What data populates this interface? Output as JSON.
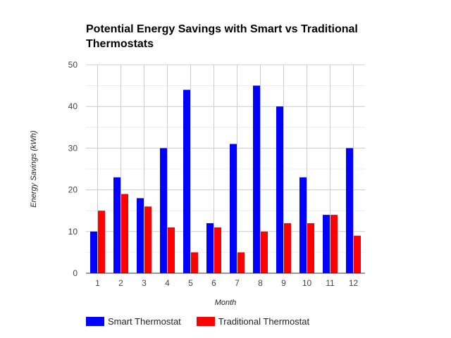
{
  "chart_data": {
    "type": "bar",
    "title": "Potential Energy Savings with Smart vs Traditional Thermostats",
    "xlabel": "Month",
    "ylabel": "Energy Savings (kWh)",
    "categories": [
      "1",
      "2",
      "3",
      "4",
      "5",
      "6",
      "7",
      "8",
      "9",
      "10",
      "11",
      "12"
    ],
    "ylim": [
      0,
      50
    ],
    "yticks": [
      0,
      10,
      20,
      30,
      40,
      50
    ],
    "grid": true,
    "legend_position": "bottom",
    "series": [
      {
        "name": "Smart Thermostat",
        "color": "#0000ff",
        "values": [
          10,
          23,
          18,
          30,
          44,
          12,
          31,
          45,
          40,
          23,
          14,
          30
        ]
      },
      {
        "name": "Traditional Thermostat",
        "color": "#ff0000",
        "values": [
          15,
          19,
          16,
          11,
          5,
          11,
          5,
          10,
          12,
          12,
          14,
          9
        ]
      }
    ]
  }
}
